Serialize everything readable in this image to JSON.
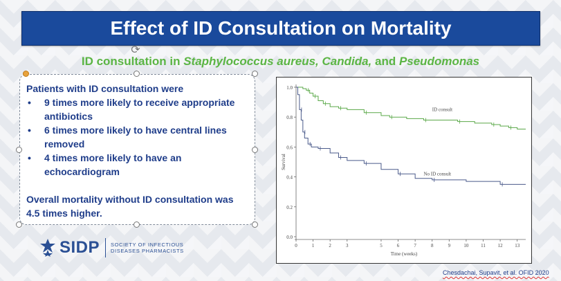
{
  "slide": {
    "title": "Effect of ID Consultation on Mortality",
    "subtitle": {
      "prefix": "ID consultation in ",
      "italic1": "Staphylococcus aureus, Candida,",
      "middle": " and ",
      "italic2": "Pseudomonas"
    },
    "textbox": {
      "intro": "Patients with ID consultation were",
      "bullets": [
        "9 times more likely to receive appropriate antibiotics",
        "6 times more likely to have central lines removed",
        "4 times more likely to have an echocardiogram"
      ],
      "conclusion": "Overall mortality without ID consultation was 4.5 times higher."
    },
    "logo": {
      "name": "SIDP",
      "subtitle_line1": "SOCIETY OF INFECTIOUS",
      "subtitle_line2": "DISEASES PHARMACISTS"
    },
    "citation": "Chesdachai, Supavit, et al. OFID 2020"
  },
  "colors": {
    "title_bg": "#1a4a9c",
    "subtitle": "#5bb544",
    "body_text": "#1f3d8a",
    "id_consult_line": "#5aa848",
    "no_id_consult_line": "#4a5a8a"
  },
  "icons": {
    "rotate": "rotate-handle-icon",
    "logo_mark": "sidp-star-icon"
  },
  "chart_data": {
    "type": "line",
    "xlabel": "Time (weeks)",
    "ylabel": "Survival",
    "xlim": [
      0,
      13.5
    ],
    "ylim": [
      0,
      1.0
    ],
    "xticks": [
      0,
      1,
      2,
      3,
      5,
      6,
      7,
      8,
      9,
      10,
      11,
      12,
      13
    ],
    "yticks": [
      "0.0",
      "0.2",
      "0.4",
      "0.6",
      "0.8",
      "1.0"
    ],
    "step": true,
    "series": [
      {
        "name": "ID consult",
        "x": [
          0,
          0.4,
          0.6,
          0.8,
          1.0,
          1.3,
          1.6,
          2.0,
          2.5,
          3.0,
          4.0,
          5.0,
          5.5,
          6.5,
          7.5,
          8.5,
          9.5,
          10.5,
          11.5,
          12.0,
          12.5,
          13.0,
          13.5
        ],
        "y": [
          1.0,
          0.99,
          0.98,
          0.96,
          0.94,
          0.91,
          0.89,
          0.87,
          0.86,
          0.85,
          0.83,
          0.81,
          0.8,
          0.79,
          0.78,
          0.78,
          0.77,
          0.76,
          0.75,
          0.74,
          0.73,
          0.72,
          0.72
        ]
      },
      {
        "name": "No ID consult",
        "x": [
          0,
          0.1,
          0.2,
          0.3,
          0.4,
          0.5,
          0.7,
          0.9,
          1.3,
          2.0,
          2.5,
          3.0,
          4.0,
          5.0,
          6.0,
          7.0,
          8.0,
          10.0,
          12.0,
          13.5
        ],
        "y": [
          1.0,
          0.95,
          0.85,
          0.78,
          0.7,
          0.66,
          0.62,
          0.6,
          0.59,
          0.56,
          0.53,
          0.51,
          0.49,
          0.45,
          0.42,
          0.39,
          0.38,
          0.37,
          0.35,
          0.35
        ]
      }
    ]
  }
}
